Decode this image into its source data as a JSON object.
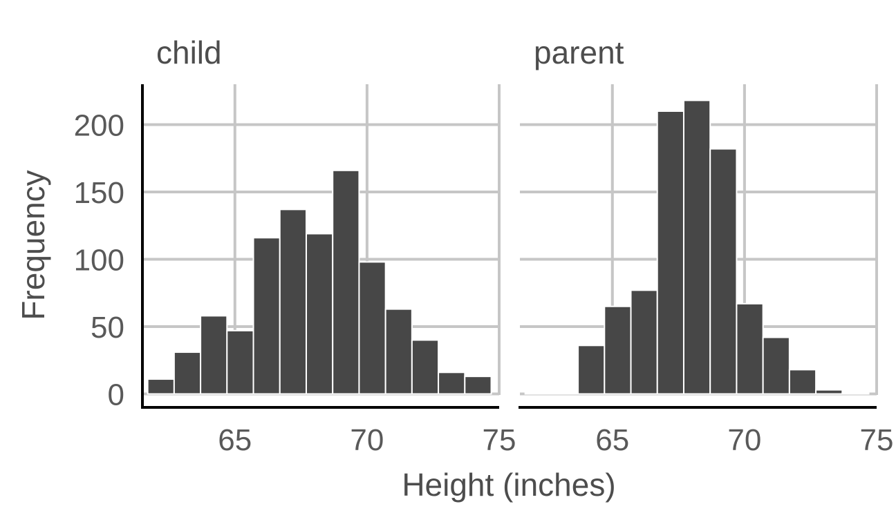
{
  "chart_data": {
    "type": "bar",
    "subtype": "faceted-histogram",
    "xlabel": "Height (inches)",
    "ylabel": "Frequency",
    "xlim": [
      61.5,
      75
    ],
    "ylim": [
      -10,
      230
    ],
    "x_ticks": [
      65,
      70,
      75
    ],
    "y_ticks": [
      0,
      50,
      100,
      150,
      200
    ],
    "grid": true,
    "bar_color": "#474747",
    "bin_width": 1,
    "facets": [
      {
        "title": "child",
        "bins": [
          {
            "x0": 61.7,
            "x1": 62.7,
            "count": 11
          },
          {
            "x0": 62.7,
            "x1": 63.7,
            "count": 31
          },
          {
            "x0": 63.7,
            "x1": 64.7,
            "count": 58
          },
          {
            "x0": 64.7,
            "x1": 65.7,
            "count": 47
          },
          {
            "x0": 65.7,
            "x1": 66.7,
            "count": 116
          },
          {
            "x0": 66.7,
            "x1": 67.7,
            "count": 137
          },
          {
            "x0": 67.7,
            "x1": 68.7,
            "count": 119
          },
          {
            "x0": 68.7,
            "x1": 69.7,
            "count": 166
          },
          {
            "x0": 69.7,
            "x1": 70.7,
            "count": 98
          },
          {
            "x0": 70.7,
            "x1": 71.7,
            "count": 63
          },
          {
            "x0": 71.7,
            "x1": 72.7,
            "count": 40
          },
          {
            "x0": 72.7,
            "x1": 73.7,
            "count": 16
          },
          {
            "x0": 73.7,
            "x1": 74.7,
            "count": 13
          }
        ]
      },
      {
        "title": "parent",
        "bins": [
          {
            "x0": 61.7,
            "x1": 62.7,
            "count": 0
          },
          {
            "x0": 62.7,
            "x1": 63.7,
            "count": 0
          },
          {
            "x0": 63.7,
            "x1": 64.7,
            "count": 36
          },
          {
            "x0": 64.7,
            "x1": 65.7,
            "count": 65
          },
          {
            "x0": 65.7,
            "x1": 66.7,
            "count": 77
          },
          {
            "x0": 66.7,
            "x1": 67.7,
            "count": 210
          },
          {
            "x0": 67.7,
            "x1": 68.7,
            "count": 218
          },
          {
            "x0": 68.7,
            "x1": 69.7,
            "count": 182
          },
          {
            "x0": 69.7,
            "x1": 70.7,
            "count": 67
          },
          {
            "x0": 70.7,
            "x1": 71.7,
            "count": 42
          },
          {
            "x0": 71.7,
            "x1": 72.7,
            "count": 18
          },
          {
            "x0": 72.7,
            "x1": 73.7,
            "count": 3
          },
          {
            "x0": 73.7,
            "x1": 74.7,
            "count": 0
          }
        ]
      }
    ]
  }
}
